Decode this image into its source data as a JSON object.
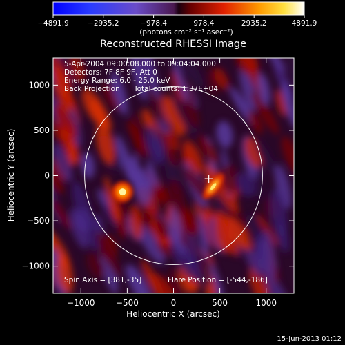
{
  "chart_data": {
    "type": "heatmap",
    "title": "Reconstructed RHESSI Image",
    "xlabel": "Heliocentric X (arcsec)",
    "ylabel": "Heliocentric Y (arcsec)",
    "xlim": [
      -1300,
      1300
    ],
    "ylim": [
      -1300,
      1300
    ],
    "xticks": [
      -1000,
      -500,
      0,
      500,
      1000
    ],
    "yticks": [
      -1000,
      -500,
      0,
      500,
      1000
    ],
    "colorbar": {
      "min": -4891.9,
      "max": 4891.9,
      "tick_values": [
        -4891.9,
        -2935.2,
        -978.4,
        978.4,
        2935.2,
        4891.9
      ],
      "tick_labels": [
        "−4891.9",
        "−2935.2",
        "−978.4",
        "978.4",
        "2935.2",
        "4891.9"
      ],
      "unit": "(photons cm⁻² s⁻¹ asec⁻²)"
    },
    "solar_limb_radius_arcsec": 960,
    "sources": [
      {
        "x": -550,
        "y": -180,
        "peak": 4891.9
      },
      {
        "x": 430,
        "y": -120,
        "peak": 3300
      }
    ],
    "crosshair": {
      "x": 381,
      "y": -35
    }
  },
  "annotations": {
    "time": "5-Apr-2004 09:00:08.000 to 09:04:04.000",
    "detectors": "Detectors: 7F 8F 9F, Att 0",
    "energy": "Energy Range: 6.0 - 25.0 keV",
    "method": "Back Projection",
    "counts": "Total counts: 1.37E+04",
    "spin_axis": "Spin Axis = [381,-35]",
    "flare_position": "Flare Position = [-544,-186]"
  },
  "footer": {
    "date": "15-Jun-2013 01:12"
  },
  "colors": {
    "limb": "#ffffff",
    "frame": "#ffffff",
    "background": "#000000"
  }
}
